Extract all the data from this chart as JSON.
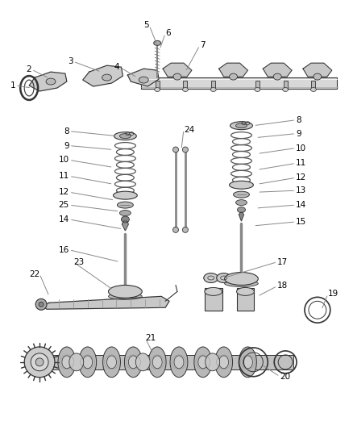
{
  "background_color": "#ffffff",
  "line_color": "#333333",
  "fig_width": 4.38,
  "fig_height": 5.33,
  "dpi": 100,
  "label_fontsize": 7.5,
  "leader_color": "#888888",
  "part_color": "#aaaaaa",
  "part_stroke": "#333333"
}
